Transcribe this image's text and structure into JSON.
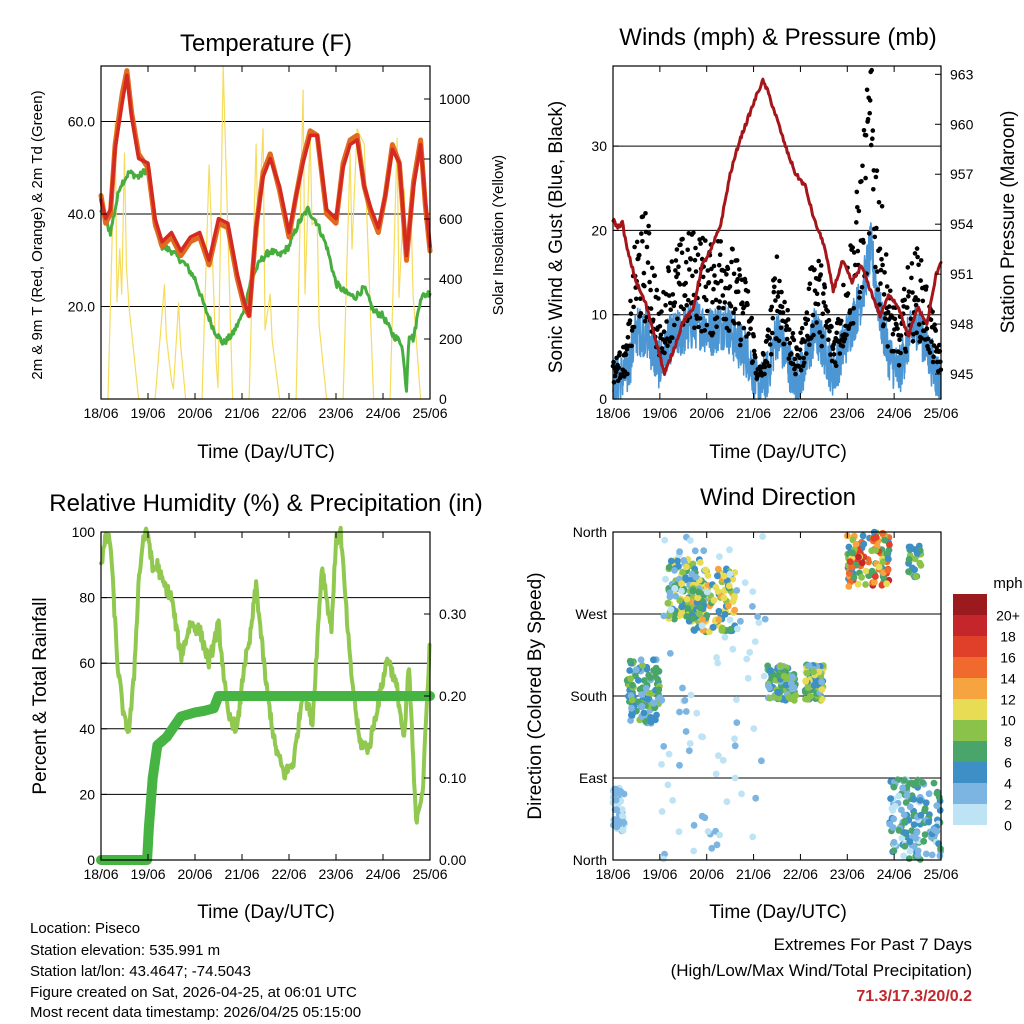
{
  "colors": {
    "temp_2m": "#e06a1e",
    "temp_9m": "#d42a22",
    "dewpoint": "#46ad3e",
    "solar": "#f6dc5c",
    "wind": "#4c96d4",
    "gust": "#000000",
    "pressure": "#a5161b",
    "rh": "#90c850",
    "precip": "#46b443",
    "extremes": "#c0282d"
  },
  "chart_data": [
    {
      "id": "temperature",
      "type": "line",
      "title": "Temperature (F)",
      "xlabel": "Time (Day/UTC)",
      "ylabel": "2m & 9m T (Red, Orange) & 2m Td (Green)",
      "ylabel_right": "Solar Insolation (Yellow)",
      "x_tick_labels": [
        "18/06",
        "19/06",
        "20/06",
        "21/06",
        "22/06",
        "23/06",
        "24/06",
        "25/06"
      ],
      "xlim": [
        0,
        7
      ],
      "ylim": [
        0,
        72
      ],
      "yticks": [
        20,
        40,
        60
      ],
      "ytick_labels": [
        "20.0",
        "40.0",
        "60.0"
      ],
      "ylim_right": [
        0,
        1110
      ],
      "yticks_right": [
        0,
        200,
        400,
        600,
        800,
        1000
      ],
      "grid_y": [
        20,
        40,
        60
      ],
      "series": [
        {
          "name": "2m T",
          "axis": "left",
          "x": [
            0,
            0.1,
            0.2,
            0.3,
            0.45,
            0.55,
            0.65,
            0.8,
            1.0,
            1.15,
            1.3,
            1.5,
            1.7,
            1.9,
            2.1,
            2.3,
            2.5,
            2.7,
            2.9,
            3.05,
            3.15,
            3.3,
            3.45,
            3.6,
            3.8,
            4.0,
            4.15,
            4.3,
            4.45,
            4.6,
            4.8,
            5.0,
            5.15,
            5.3,
            5.45,
            5.6,
            5.75,
            5.9,
            6.05,
            6.2,
            6.35,
            6.5,
            6.65,
            6.8,
            6.9,
            7.0
          ],
          "values": [
            44,
            38,
            40,
            55,
            66,
            71,
            62,
            53,
            50,
            38,
            33,
            35,
            31,
            34,
            35,
            29,
            38,
            37,
            26,
            20,
            18,
            37,
            49,
            53,
            45,
            35,
            44,
            52,
            58,
            57,
            40,
            38,
            51,
            56,
            57,
            46,
            40,
            36,
            44,
            55,
            51,
            30,
            47,
            56,
            42,
            32
          ]
        },
        {
          "name": "9m T",
          "axis": "left",
          "x": [
            0,
            0.1,
            0.2,
            0.3,
            0.45,
            0.55,
            0.65,
            0.8,
            1.0,
            1.15,
            1.3,
            1.5,
            1.7,
            1.9,
            2.1,
            2.3,
            2.5,
            2.7,
            2.9,
            3.05,
            3.15,
            3.3,
            3.45,
            3.6,
            3.8,
            4.0,
            4.15,
            4.3,
            4.45,
            4.6,
            4.8,
            5.0,
            5.15,
            5.3,
            5.45,
            5.6,
            5.75,
            5.9,
            6.05,
            6.2,
            6.35,
            6.5,
            6.65,
            6.8,
            6.9,
            7.0
          ],
          "values": [
            43,
            39,
            41,
            54,
            64,
            70,
            61,
            52,
            51,
            39,
            34,
            36,
            32,
            35,
            36,
            30,
            39,
            38,
            27,
            21,
            18,
            37,
            48,
            52,
            46,
            36,
            44,
            51,
            57,
            57,
            41,
            39,
            50,
            55,
            56,
            46,
            41,
            37,
            44,
            54,
            51,
            31,
            46,
            55,
            43,
            33
          ]
        },
        {
          "name": "2m Td",
          "axis": "left",
          "x": [
            0,
            0.2,
            0.4,
            0.6,
            0.8,
            1.0,
            1.15,
            1.3,
            1.5,
            1.8,
            2.0,
            2.2,
            2.4,
            2.6,
            2.8,
            3.0,
            3.2,
            3.4,
            3.6,
            3.8,
            4.0,
            4.2,
            4.4,
            4.6,
            4.8,
            5.0,
            5.2,
            5.4,
            5.6,
            5.8,
            6.0,
            6.2,
            6.4,
            6.5,
            6.55,
            6.65,
            6.8,
            7.0
          ],
          "values": [
            41,
            36,
            46,
            49,
            48,
            50,
            37,
            33,
            32,
            29,
            26,
            20,
            15,
            12,
            14,
            18,
            26,
            30,
            32,
            31,
            33,
            38,
            41,
            38,
            33,
            25,
            23,
            22,
            24,
            19,
            18,
            14,
            12,
            2,
            14,
            13,
            22,
            23
          ]
        },
        {
          "name": "Solar Insolation",
          "axis": "right",
          "x": [
            0.15,
            0.3,
            0.4,
            0.5,
            0.6,
            0.8,
            1.15,
            1.35,
            1.5,
            1.65,
            1.8,
            2.15,
            2.3,
            2.45,
            2.6,
            2.8,
            3.15,
            3.3,
            3.45,
            3.6,
            3.8,
            4.15,
            4.3,
            4.45,
            4.6,
            4.8,
            5.15,
            5.3,
            5.45,
            5.6,
            5.8,
            6.15,
            6.3,
            6.45,
            6.6,
            6.8
          ],
          "values": [
            0,
            920,
            500,
            820,
            300,
            0,
            0,
            380,
            60,
            320,
            0,
            0,
            780,
            120,
            1110,
            0,
            0,
            850,
            900,
            350,
            0,
            0,
            1030,
            880,
            600,
            0,
            0,
            820,
            900,
            850,
            0,
            0,
            870,
            700,
            600,
            0
          ]
        }
      ]
    },
    {
      "id": "winds",
      "type": "line",
      "title": "Winds (mph) & Pressure (mb)",
      "xlabel": "Time (Day/UTC)",
      "ylabel": "Sonic Wind & Gust (Blue, Black)",
      "ylabel_right": "Station Pressure (Maroon)",
      "x_tick_labels": [
        "18/06",
        "19/06",
        "20/06",
        "21/06",
        "22/06",
        "23/06",
        "24/06",
        "25/06"
      ],
      "xlim": [
        0,
        7
      ],
      "ylim": [
        0,
        39.5
      ],
      "yticks": [
        0,
        10,
        20,
        30
      ],
      "ylim_right": [
        943.5,
        963.5
      ],
      "yticks_right": [
        945,
        948,
        951,
        954,
        957,
        960,
        963
      ],
      "grid_y": [
        10,
        20,
        30
      ],
      "series": [
        {
          "name": "Sonic Wind",
          "axis": "left",
          "x": [
            0,
            0.3,
            0.5,
            0.7,
            0.9,
            1.0,
            1.2,
            1.5,
            1.8,
            2.1,
            2.4,
            2.6,
            2.9,
            3.1,
            3.3,
            3.5,
            3.7,
            3.9,
            4.1,
            4.3,
            4.5,
            4.7,
            4.9,
            5.1,
            5.3,
            5.5,
            5.7,
            5.9,
            6.1,
            6.3,
            6.5,
            6.7,
            6.9,
            7.0
          ],
          "values": [
            2,
            3,
            8,
            8,
            5,
            4,
            7,
            8,
            9,
            8,
            9,
            7,
            5,
            1,
            3,
            8,
            5,
            2,
            4,
            8,
            6,
            3,
            6,
            9,
            12,
            18,
            10,
            5,
            3,
            7,
            9,
            6,
            3,
            2
          ]
        },
        {
          "name": "Gust",
          "axis": "left",
          "x": [
            0,
            0.3,
            0.5,
            0.7,
            0.9,
            1.0,
            1.2,
            1.5,
            1.8,
            2.1,
            2.4,
            2.6,
            2.9,
            3.1,
            3.3,
            3.5,
            3.7,
            3.9,
            4.1,
            4.3,
            4.5,
            4.7,
            4.9,
            5.1,
            5.3,
            5.5,
            5.7,
            5.9,
            6.1,
            6.3,
            6.5,
            6.7,
            6.9,
            7.0
          ],
          "values": [
            4,
            6,
            18,
            20,
            14,
            9,
            15,
            17,
            18,
            16,
            19,
            15,
            12,
            3,
            7,
            16,
            11,
            5,
            9,
            17,
            13,
            7,
            12,
            18,
            25,
            37,
            22,
            12,
            8,
            14,
            16,
            12,
            7,
            5
          ]
        },
        {
          "name": "Station Pressure",
          "axis": "right",
          "x": [
            0,
            0.1,
            0.2,
            0.3,
            0.5,
            0.7,
            0.9,
            1.1,
            1.3,
            1.5,
            1.7,
            1.9,
            2.1,
            2.3,
            2.5,
            2.7,
            2.9,
            3.1,
            3.2,
            3.3,
            3.5,
            3.7,
            3.9,
            4.1,
            4.3,
            4.5,
            4.7,
            4.9,
            5.1,
            5.3,
            5.5,
            5.7,
            5.9,
            6.1,
            6.3,
            6.5,
            6.7,
            6.9,
            7.0
          ],
          "values": [
            954.3,
            953.8,
            954.1,
            952.5,
            950.5,
            949.2,
            947.2,
            945,
            946.5,
            948.2,
            948.8,
            951.5,
            952.5,
            954,
            957,
            959,
            960.5,
            962,
            962.6,
            962,
            960.3,
            958.5,
            957,
            956.3,
            954.2,
            952.8,
            950,
            951.8,
            950.5,
            951.5,
            950,
            948.5,
            949.8,
            949,
            947.2,
            949,
            948,
            951,
            951.8
          ]
        }
      ]
    },
    {
      "id": "humidity",
      "type": "line",
      "title": "Relative Humidity (%) & Precipitation (in)",
      "xlabel": "Time (Day/UTC)",
      "ylabel": "Percent & Total Rainfall",
      "x_tick_labels": [
        "18/06",
        "19/06",
        "20/06",
        "21/06",
        "22/06",
        "23/06",
        "24/06",
        "25/06"
      ],
      "xlim": [
        0,
        7
      ],
      "ylim": [
        0,
        100
      ],
      "yticks": [
        0,
        20,
        40,
        60,
        80,
        100
      ],
      "ylim_right": [
        0,
        0.4
      ],
      "yticks_right": [
        0.0,
        0.1,
        0.2,
        0.3
      ],
      "ytick_labels_right": [
        "0.00",
        "0.10",
        "0.20",
        "0.30"
      ],
      "grid_y": [
        20,
        40,
        60,
        80
      ],
      "series": [
        {
          "name": "Relative Humidity",
          "axis": "left",
          "x": [
            0,
            0.1,
            0.2,
            0.35,
            0.5,
            0.6,
            0.7,
            0.8,
            0.9,
            1.0,
            1.1,
            1.2,
            1.3,
            1.5,
            1.7,
            1.9,
            2.1,
            2.3,
            2.5,
            2.7,
            2.9,
            3.05,
            3.15,
            3.3,
            3.5,
            3.7,
            3.9,
            4.1,
            4.3,
            4.5,
            4.7,
            4.9,
            5.0,
            5.1,
            5.3,
            5.5,
            5.7,
            5.9,
            6.1,
            6.3,
            6.45,
            6.55,
            6.7,
            6.85,
            7.0
          ],
          "values": [
            90,
            98,
            97,
            60,
            42,
            40,
            55,
            85,
            98,
            100,
            88,
            90,
            85,
            80,
            62,
            72,
            70,
            60,
            72,
            44,
            40,
            60,
            65,
            84,
            55,
            35,
            26,
            30,
            52,
            42,
            90,
            70,
            97,
            100,
            60,
            36,
            34,
            48,
            62,
            52,
            36,
            60,
            12,
            22,
            68
          ]
        },
        {
          "name": "Total Rainfall",
          "axis": "right",
          "x": [
            0,
            0.8,
            0.98,
            1.02,
            1.1,
            1.2,
            1.4,
            1.7,
            2.0,
            2.2,
            2.4,
            2.5,
            2.6,
            3.5,
            5.0,
            7.0
          ],
          "values": [
            0,
            0,
            0,
            0.04,
            0.1,
            0.14,
            0.15,
            0.175,
            0.18,
            0.182,
            0.185,
            0.2,
            0.2,
            0.2,
            0.2,
            0.2
          ]
        }
      ]
    },
    {
      "id": "direction",
      "type": "scatter",
      "title": "Wind Direction",
      "xlabel": "Time (Day/UTC)",
      "ylabel": "Direction (Colored By Speed)",
      "x_tick_labels": [
        "18/06",
        "19/06",
        "20/06",
        "21/06",
        "22/06",
        "23/06",
        "24/06",
        "25/06"
      ],
      "xlim": [
        0,
        7
      ],
      "ylim": [
        0,
        360
      ],
      "yticks": [
        0,
        90,
        180,
        270,
        360
      ],
      "ytick_labels": [
        "North",
        "East",
        "South",
        "West",
        "North"
      ],
      "grid_y": [
        90,
        180,
        270
      ],
      "colorbar": {
        "title": "mph",
        "labels": [
          "20+",
          "18",
          "16",
          "14",
          "12",
          "10",
          "8",
          "6",
          "4",
          "2",
          "0"
        ],
        "colors": [
          "#9b1a1d",
          "#c4262b",
          "#e0402a",
          "#ef6a2c",
          "#f6a440",
          "#e9dc55",
          "#8bc34a",
          "#4aa56a",
          "#3d8fc6",
          "#7cb5e1",
          "#bde3f5"
        ]
      },
      "clusters": [
        {
          "x": [
            0.0,
            0.25
          ],
          "dir": [
            30,
            80
          ],
          "speed": [
            1,
            4
          ],
          "n": 45
        },
        {
          "x": [
            0.3,
            1.0
          ],
          "dir": [
            150,
            220
          ],
          "speed": [
            2,
            9
          ],
          "n": 110
        },
        {
          "x": [
            1.15,
            2.0
          ],
          "dir": [
            260,
            330
          ],
          "speed": [
            3,
            12
          ],
          "n": 130
        },
        {
          "x": [
            1.7,
            2.6
          ],
          "dir": [
            250,
            320
          ],
          "speed": [
            4,
            13
          ],
          "n": 110
        },
        {
          "x": [
            1.0,
            3.3
          ],
          "dir": [
            0,
            360
          ],
          "speed": [
            0,
            4
          ],
          "n": 90
        },
        {
          "x": [
            3.3,
            3.9
          ],
          "dir": [
            175,
            215
          ],
          "speed": [
            2,
            10
          ],
          "n": 100
        },
        {
          "x": [
            4.1,
            4.5
          ],
          "dir": [
            175,
            215
          ],
          "speed": [
            2,
            12
          ],
          "n": 90
        },
        {
          "x": [
            5.0,
            5.9
          ],
          "dir": [
            300,
            360
          ],
          "speed": [
            4,
            19
          ],
          "n": 130
        },
        {
          "x": [
            5.9,
            7.0
          ],
          "dir": [
            0,
            90
          ],
          "speed": [
            1,
            8
          ],
          "n": 150
        },
        {
          "x": [
            6.3,
            6.6
          ],
          "dir": [
            310,
            345
          ],
          "speed": [
            4,
            10
          ],
          "n": 25
        }
      ]
    }
  ],
  "footer": {
    "location": "Location: Piseco",
    "elevation": "Station elevation: 535.991 m",
    "latlon": "Station lat/lon: 43.4647; -74.5043",
    "created": "Figure created on Sat, 2026-04-25, at 06:01 UTC",
    "recent": "Most recent data timestamp: 2026/04/25 05:15:00"
  },
  "extremes": {
    "heading": "Extremes For Past 7 Days",
    "subheading": "(High/Low/Max Wind/Total Precipitation)",
    "values": "71.3/17.3/20/0.2"
  }
}
